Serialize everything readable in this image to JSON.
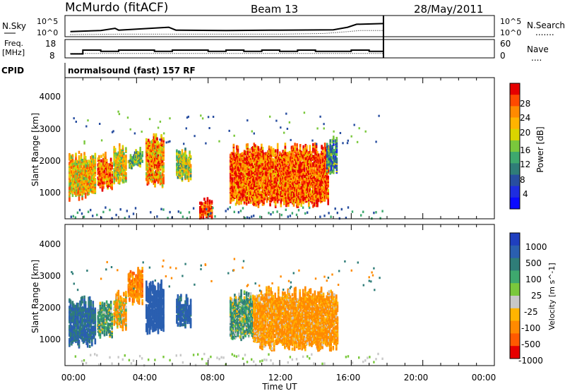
{
  "header": {
    "station": "McMurdo (fitACF)",
    "beam": "Beam 13",
    "date": "28/May/2011"
  },
  "noise_panel": {
    "left_label": "N.Sky",
    "right_label": "N.Search",
    "left_ticks": [
      "10^5",
      "10^0"
    ],
    "right_ticks": [
      "10^5",
      "10^0"
    ],
    "right_legend": "......."
  },
  "freq_panel": {
    "left_label_line1": "Freq.",
    "left_label_line2": "[MHz]",
    "right_label": "Nave",
    "left_ticks": [
      "18",
      "8"
    ],
    "right_ticks": [
      "60",
      "0"
    ],
    "right_legend": "...."
  },
  "cpid": {
    "label": "CPID",
    "value": "normalsound (fast) 157 RF"
  },
  "axes": {
    "ylabel": "Slant Range [km]",
    "yticks": [
      "4000",
      "3000",
      "2000",
      "1000"
    ],
    "xticks": [
      "00:00",
      "04:00",
      "08:00",
      "12:00",
      "16:00",
      "20:00",
      "00:00"
    ],
    "xlabel": "Time UT"
  },
  "power_colorbar": {
    "label": "Power [dB]",
    "ticks": [
      "28",
      "24",
      "20",
      "16",
      "12",
      "8",
      "4"
    ],
    "colors": [
      "#e60000",
      "#ff4a00",
      "#ff8a00",
      "#ffb400",
      "#d9d400",
      "#7ac83c",
      "#3ea86e",
      "#2f7d78",
      "#284ea0",
      "#1e2de0",
      "#0a0aff"
    ]
  },
  "velocity_colorbar": {
    "label": "Velocity [m s^-1]",
    "ticks": [
      "1000",
      "500",
      "100",
      "25",
      "-25",
      "-100",
      "-500",
      "-1000"
    ],
    "colors": [
      "#1f3fbf",
      "#2a5fb0",
      "#2f7d78",
      "#3ea86e",
      "#7ac83c",
      "#c8c8c8",
      "#ffb400",
      "#ff8a00",
      "#ff5a00",
      "#e60000"
    ]
  },
  "chart_data": [
    {
      "type": "line",
      "title": "",
      "series": [
        {
          "name": "N.Sky",
          "x_hours": [
            0.3,
            2.0,
            2.8,
            3.0,
            5.8,
            6.2,
            9.0,
            12.0,
            15.0,
            15.8,
            16.3,
            17.8
          ],
          "log10": [
            1.0,
            1.3,
            1.9,
            1.4,
            2.2,
            1.4,
            1.3,
            1.4,
            1.5,
            2.2,
            3.0,
            3.2
          ]
        },
        {
          "name": "N.Search",
          "x_hours": [
            0.3,
            3.0,
            6.0,
            9.0,
            12.0,
            14.5,
            15.8,
            16.5,
            17.8
          ],
          "log10": [
            0.2,
            0.3,
            0.3,
            0.3,
            0.3,
            0.5,
            1.0,
            1.3,
            1.3
          ]
        }
      ]
    },
    {
      "type": "line",
      "series": [
        {
          "name": "Freq.",
          "x_hours": [
            0.3,
            1.0,
            2.0,
            3.0,
            4.0,
            5.0,
            6.0,
            7.0,
            8.0,
            9.0,
            10.0,
            11.0,
            12.0,
            13.0,
            14.0,
            15.0,
            16.0,
            17.0,
            17.8
          ],
          "mhz": [
            10,
            13,
            12,
            13,
            13,
            12,
            13,
            13,
            12,
            13,
            12,
            13,
            12,
            13,
            12,
            12,
            13,
            12,
            12
          ]
        },
        {
          "name": "Nave",
          "x_hours": [
            0.3,
            17.8
          ],
          "value": [
            14,
            14
          ]
        }
      ]
    },
    {
      "type": "heatmap",
      "title": "Power [dB]",
      "x_range_hours": [
        0,
        24
      ],
      "y_range_km": [
        180,
        4500
      ],
      "data_end_hours": 17.8,
      "echo_regions": [
        {
          "t0": 0.2,
          "t1": 1.7,
          "r0": 900,
          "r1": 2100,
          "dB": 22
        },
        {
          "t0": 1.8,
          "t1": 2.6,
          "r0": 1200,
          "r1": 2000,
          "dB": 26
        },
        {
          "t0": 2.7,
          "t1": 3.4,
          "r0": 1400,
          "r1": 2300,
          "dB": 20
        },
        {
          "t0": 3.5,
          "t1": 4.3,
          "r0": 1800,
          "r1": 2200,
          "dB": 16
        },
        {
          "t0": 4.5,
          "t1": 5.5,
          "r0": 1300,
          "r1": 2600,
          "dB": 24
        },
        {
          "t0": 6.2,
          "t1": 7.0,
          "r0": 1500,
          "r1": 2200,
          "dB": 18
        },
        {
          "t0": 7.5,
          "t1": 8.2,
          "r0": 300,
          "r1": 700,
          "dB": 28
        },
        {
          "t0": 9.2,
          "t1": 14.7,
          "r0": 700,
          "r1": 2300,
          "dB": 27
        },
        {
          "t0": 14.6,
          "t1": 15.2,
          "r0": 1700,
          "r1": 2500,
          "dB": 12
        }
      ]
    },
    {
      "type": "heatmap",
      "title": "Velocity [m s^-1]",
      "x_range_hours": [
        0,
        24
      ],
      "y_range_km": [
        180,
        4500
      ],
      "data_end_hours": 17.8,
      "echo_regions": [
        {
          "t0": 0.2,
          "t1": 1.7,
          "r0": 900,
          "r1": 2100,
          "vel": 500
        },
        {
          "t0": 1.8,
          "t1": 2.6,
          "r0": 1200,
          "r1": 2000,
          "vel": 100
        },
        {
          "t0": 2.7,
          "t1": 3.4,
          "r0": 1400,
          "r1": 2300,
          "vel": -100
        },
        {
          "t0": 3.5,
          "t1": 4.3,
          "r0": 2200,
          "r1": 3000,
          "vel": -200
        },
        {
          "t0": 4.5,
          "t1": 5.5,
          "r0": 1300,
          "r1": 2600,
          "vel": 800
        },
        {
          "t0": 6.2,
          "t1": 7.0,
          "r0": 1500,
          "r1": 2200,
          "vel": 600
        },
        {
          "t0": 9.2,
          "t1": 10.5,
          "r0": 1100,
          "r1": 2300,
          "vel": 80
        },
        {
          "t0": 10.5,
          "t1": 15.2,
          "r0": 800,
          "r1": 2400,
          "vel": -150
        }
      ]
    }
  ]
}
